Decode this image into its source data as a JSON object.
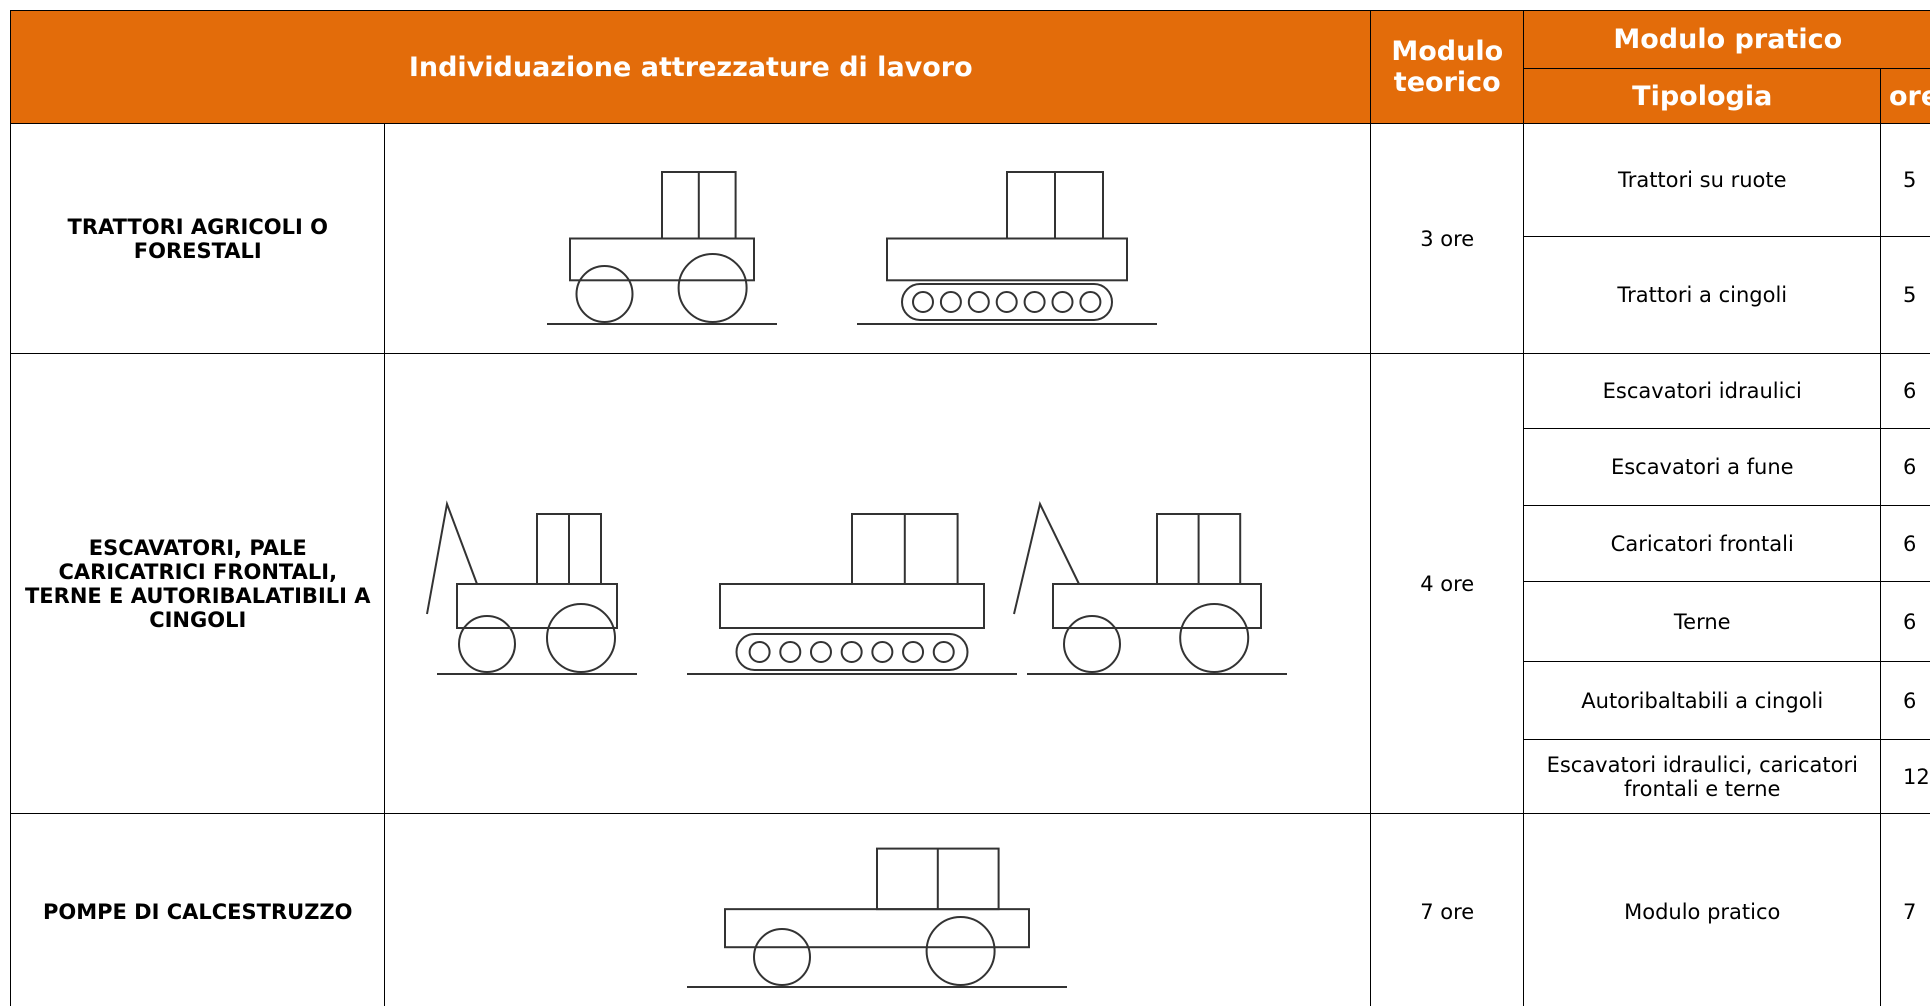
{
  "header": {
    "title": "Individuazione attrezzature di lavoro",
    "theory": "Modulo teorico",
    "practical": "Modulo pratico",
    "type": "Tipologia",
    "hours": "ore"
  },
  "rows": [
    {
      "category": "TRATTORI AGRICOLI O FORESTALI",
      "theory": "3 ore",
      "items": [
        {
          "type": "Trattori su ruote",
          "hours": 5
        },
        {
          "type": "Trattori a cingoli",
          "hours": 5
        }
      ]
    },
    {
      "category": "ESCAVATORI, PALE CARICATRICI FRONTALI, TERNE E AUTORIBALATIBILI A CINGOLI",
      "theory": "4 ore",
      "items": [
        {
          "type": "Escavatori idraulici",
          "hours": 6
        },
        {
          "type": "Escavatori a fune",
          "hours": 6
        },
        {
          "type": "Caricatori frontali",
          "hours": 6
        },
        {
          "type": "Terne",
          "hours": 6
        },
        {
          "type": "Autoribaltabili a cingoli",
          "hours": 6
        },
        {
          "type": "Escavatori idraulici, caricatori frontali e terne",
          "hours": 12
        }
      ]
    },
    {
      "category": "POMPE DI CALCESTRUZZO",
      "theory": "7 ore",
      "items": [
        {
          "type": "Modulo pratico",
          "hours": 7
        }
      ]
    }
  ]
}
